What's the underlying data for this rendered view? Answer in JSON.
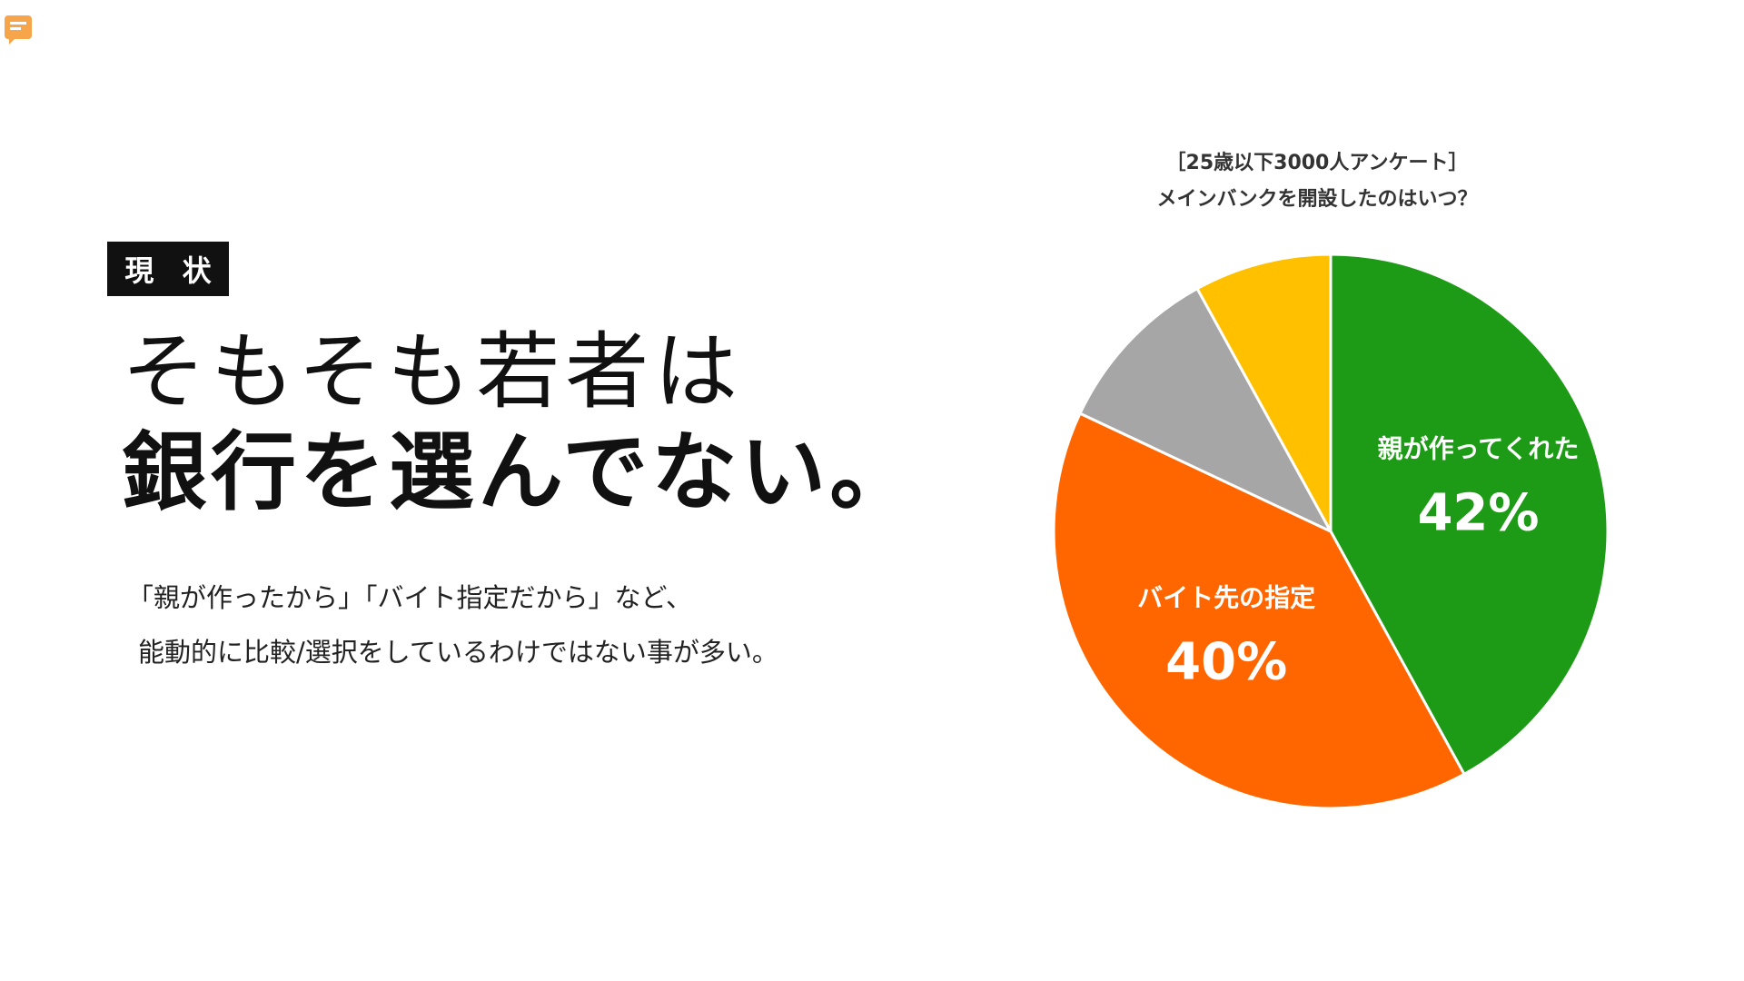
{
  "ui": {
    "comment_icon": "comment-icon",
    "comment_icon_color": "#F6A54A"
  },
  "badge": {
    "label": "現 状"
  },
  "headline": {
    "line1": "そもそも若者は",
    "line2": "銀行を選んでない。"
  },
  "body": {
    "line1": "「親が作ったから」「バイト指定だから」など、",
    "line2": "能動的に比較/選択をしているわけではない事が多い。"
  },
  "chart_data": {
    "type": "pie",
    "title": "［25歳以下3000人アンケート］",
    "subtitle": "メインバンクを開設したのはいつ？",
    "start_angle_deg": 0,
    "direction": "clockwise",
    "slices": [
      {
        "name": "親が作ってくれた",
        "value": 42,
        "value_label": "42%",
        "color": "#1E9B16",
        "labeled": true
      },
      {
        "name": "バイト先の指定",
        "value": 40,
        "value_label": "40%",
        "color": "#FF6600",
        "labeled": true
      },
      {
        "name": "",
        "value": 10,
        "value_label": "",
        "color": "#A6A6A6",
        "labeled": false
      },
      {
        "name": "",
        "value": 8,
        "value_label": "",
        "color": "#FFC000",
        "labeled": false
      }
    ]
  }
}
